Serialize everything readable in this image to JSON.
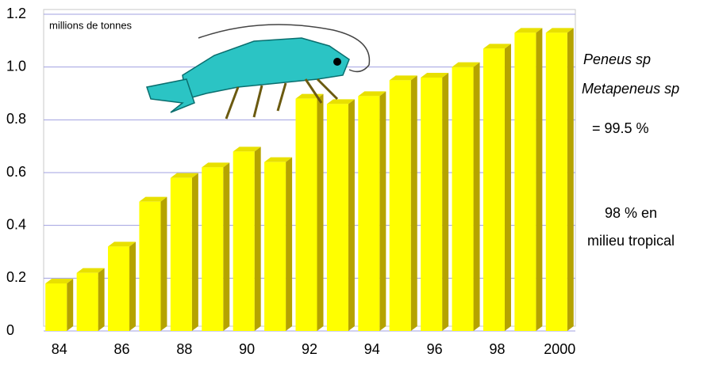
{
  "chart_data": {
    "type": "bar",
    "annotations": [
      "millions de tonnes",
      "Peneus sp",
      "Metapeneus sp",
      "= 99.5 %",
      "98 % en",
      "milieu tropical"
    ],
    "categories": [
      "84",
      null,
      "86",
      null,
      "88",
      null,
      "90",
      null,
      "92",
      null,
      "94",
      null,
      "96",
      null,
      "98",
      null,
      "2000"
    ],
    "values": [
      0.18,
      0.22,
      0.32,
      0.49,
      0.58,
      0.62,
      0.68,
      0.64,
      0.88,
      0.86,
      0.89,
      0.95,
      0.96,
      1.0,
      1.07,
      1.13,
      1.13
    ],
    "color": "#ffff00",
    "ylim": [
      0,
      1.2
    ],
    "yticks": [
      0,
      0.2,
      0.4,
      0.6,
      0.8,
      {
        "value": 1,
        "label": "1.0"
      },
      1.2
    ],
    "grid": true
  }
}
